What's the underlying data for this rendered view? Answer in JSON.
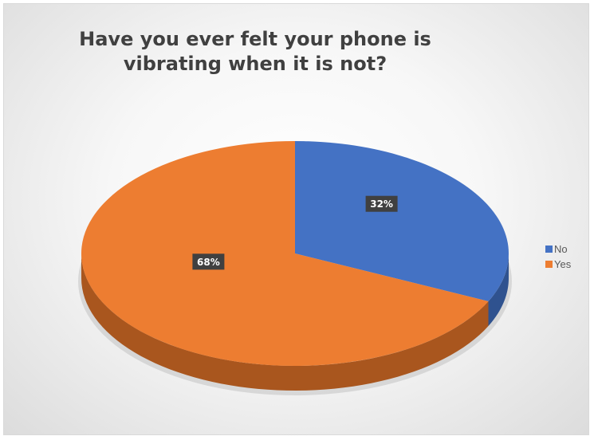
{
  "chart_data": {
    "type": "pie",
    "title": "Have you ever felt your phone is vibrating when it is not?",
    "title_lines": [
      "Have you ever felt your phone is",
      "vibrating when it is not?"
    ],
    "slices": [
      {
        "label": "No",
        "value": 32,
        "display": "32%",
        "color": "#4472C4",
        "side_color": "#2F528F"
      },
      {
        "label": "Yes",
        "value": 68,
        "display": "68%",
        "color": "#ED7D31",
        "side_color": "#A9561E"
      }
    ],
    "legend_position": "right",
    "label_background": "#404040",
    "three_d": true
  }
}
